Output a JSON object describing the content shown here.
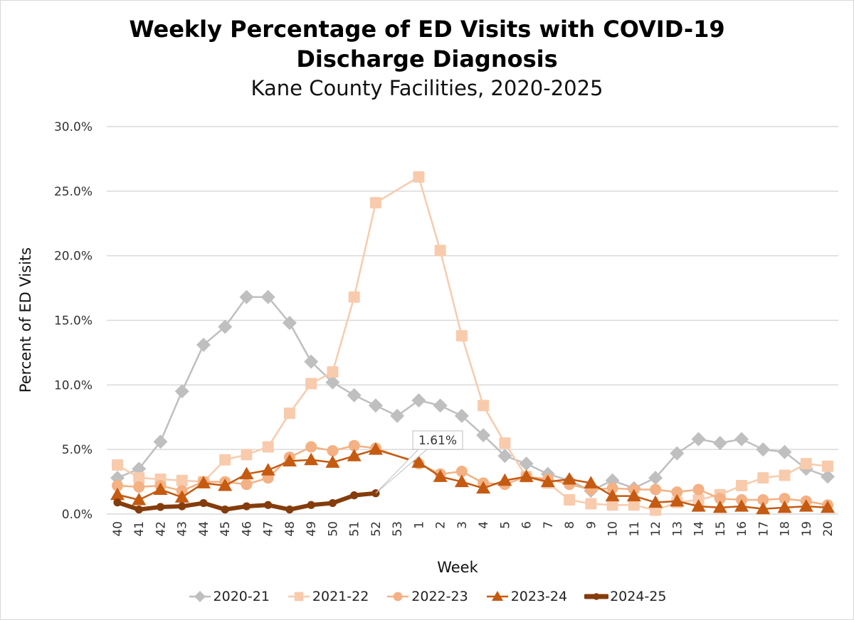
{
  "chart_data": {
    "type": "line",
    "title": "Weekly Percentage of ED Visits with COVID-19",
    "title_line2": "Discharge Diagnosis",
    "subtitle": "Kane County Facilities, 2020-2025",
    "xlabel": "Week",
    "ylabel": "Percent of ED Visits",
    "ylim": [
      0,
      30
    ],
    "yticks": [
      0,
      5,
      10,
      15,
      20,
      25,
      30
    ],
    "ytick_labels": [
      "0.0%",
      "5.0%",
      "10.0%",
      "15.0%",
      "20.0%",
      "25.0%",
      "30.0%"
    ],
    "grid": "horizontal",
    "legend_position": "bottom",
    "categories": [
      "40",
      "41",
      "42",
      "43",
      "44",
      "45",
      "46",
      "47",
      "48",
      "49",
      "50",
      "51",
      "52",
      "53",
      "1",
      "2",
      "3",
      "4",
      "5",
      "6",
      "7",
      "8",
      "9",
      "10",
      "11",
      "12",
      "13",
      "14",
      "15",
      "16",
      "17",
      "18",
      "19",
      "20"
    ],
    "series": [
      {
        "name": "2020-21",
        "color": "#BFBFBF",
        "marker": "diamond",
        "width": "normal",
        "values": [
          2.8,
          3.5,
          5.6,
          9.5,
          13.1,
          14.5,
          16.8,
          16.8,
          14.8,
          11.8,
          10.2,
          9.2,
          8.4,
          7.6,
          8.8,
          8.4,
          7.6,
          6.1,
          4.5,
          3.9,
          3.1,
          2.6,
          1.8,
          2.6,
          2.0,
          2.8,
          4.7,
          5.8,
          5.5,
          5.8,
          5.0,
          4.8,
          3.5,
          2.9
        ]
      },
      {
        "name": "2021-22",
        "color": "#F8CBAD",
        "marker": "square",
        "width": "normal",
        "values": [
          3.8,
          2.8,
          2.7,
          2.6,
          2.5,
          4.2,
          4.6,
          5.2,
          7.8,
          10.1,
          11.0,
          16.8,
          24.1,
          null,
          26.1,
          20.4,
          13.8,
          8.4,
          5.5,
          2.9,
          2.4,
          1.1,
          0.8,
          0.7,
          0.7,
          0.3,
          0.9,
          1.1,
          1.5,
          2.2,
          2.8,
          3.0,
          3.9,
          3.7
        ]
      },
      {
        "name": "2022-23",
        "color": "#F4B183",
        "marker": "circle",
        "width": "normal",
        "values": [
          2.2,
          2.1,
          2.2,
          1.8,
          2.5,
          2.5,
          2.3,
          2.8,
          4.4,
          5.2,
          4.9,
          5.3,
          5.1,
          null,
          3.9,
          3.1,
          3.3,
          2.4,
          2.3,
          2.9,
          2.7,
          2.3,
          1.9,
          2.0,
          1.9,
          1.9,
          1.7,
          1.9,
          1.2,
          1.1,
          1.1,
          1.2,
          1.0,
          0.7
        ]
      },
      {
        "name": "2023-24",
        "color": "#C55A11",
        "marker": "triangle",
        "width": "normal",
        "values": [
          1.5,
          1.1,
          1.9,
          1.3,
          2.4,
          2.2,
          3.1,
          3.4,
          4.1,
          4.2,
          4.0,
          4.5,
          5.0,
          null,
          4.0,
          2.9,
          2.5,
          2.0,
          2.6,
          2.9,
          2.5,
          2.7,
          2.4,
          1.4,
          1.4,
          0.9,
          1.0,
          0.6,
          0.5,
          0.6,
          0.4,
          0.5,
          0.6,
          0.5
        ]
      },
      {
        "name": "2024-25",
        "color": "#843C0C",
        "marker": "circle",
        "width": "thick",
        "values": [
          0.9,
          0.35,
          0.55,
          0.6,
          0.85,
          0.35,
          0.6,
          0.7,
          0.35,
          0.7,
          0.85,
          1.45,
          1.61,
          null,
          null,
          null,
          null,
          null,
          null,
          null,
          null,
          null,
          null,
          null,
          null,
          null,
          null,
          null,
          null,
          null,
          null,
          null,
          null,
          null
        ]
      }
    ],
    "annotations": [
      {
        "series": "2024-25",
        "category": "52",
        "text": "1.61%"
      }
    ]
  }
}
